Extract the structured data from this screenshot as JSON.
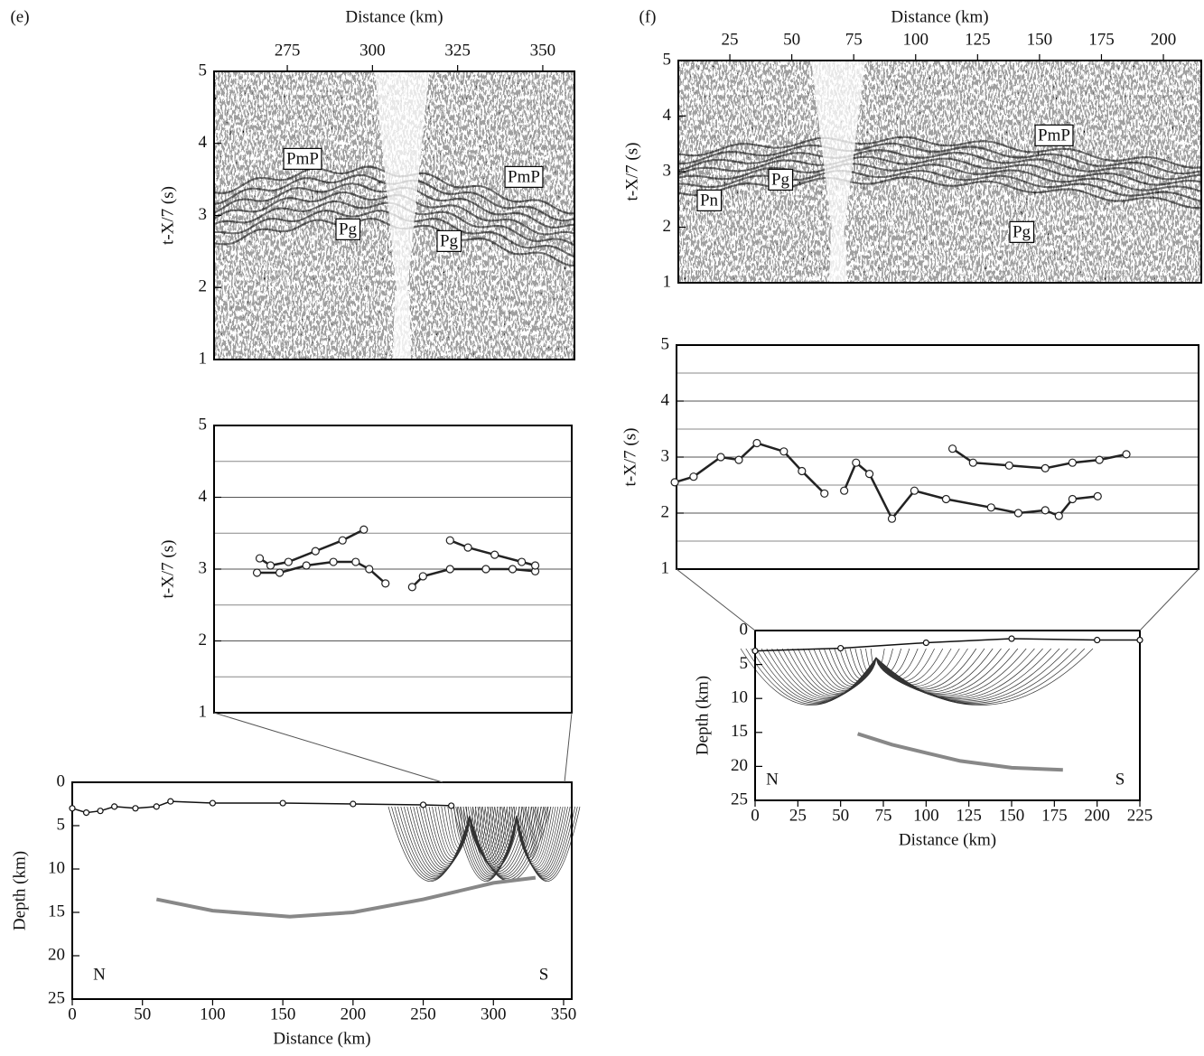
{
  "chart_data": [
    {
      "type": "seismogram",
      "panel": "(e)",
      "xlabel": "Distance (km)",
      "ylabel": "t-X/7 (s)",
      "xlim": [
        253.5,
        359.3
      ],
      "xticks": [
        275,
        300,
        325,
        350
      ],
      "ylim": [
        1,
        5
      ],
      "yticks": [
        1,
        2,
        3,
        4,
        5
      ],
      "annotations": [
        "PmP",
        "PmP",
        "Pg",
        "Pg"
      ]
    },
    {
      "type": "picks",
      "ylabel": "t-X/7 (s)",
      "xlim": [
        253.5,
        359.3
      ],
      "ylim": [
        1,
        5
      ],
      "yticks": [
        1,
        2,
        3,
        4,
        5
      ],
      "yminor": [
        1.5,
        2.5,
        3.5,
        4.5
      ],
      "grid": true,
      "color": "#222",
      "lines": [
        {
          "x": [
            267,
            270.2,
            275.5,
            283.5,
            291.5,
            297.8
          ],
          "values": [
            3.15,
            3.05,
            3.1,
            3.25,
            3.4,
            3.55
          ]
        },
        {
          "x": [
            266.2,
            272.9,
            280.8,
            288.8,
            295.4,
            299.4,
            304.2
          ],
          "values": [
            2.95,
            2.95,
            3.05,
            3.1,
            3.1,
            3.0,
            2.8
          ]
        },
        {
          "x": [
            312.1,
            315.3,
            323.3,
            333.9,
            341.8,
            348.5
          ],
          "values": [
            2.75,
            2.9,
            3.0,
            3.0,
            3.0,
            2.97
          ]
        },
        {
          "x": [
            323.3,
            328.6,
            336.5,
            344.5,
            348.5
          ],
          "values": [
            3.4,
            3.3,
            3.2,
            3.1,
            3.05
          ]
        }
      ]
    },
    {
      "type": "rays",
      "xlabel": "Distance (km)",
      "ylabel": "Depth (km)",
      "xlim": [
        0,
        355.8
      ],
      "xticks": [
        0,
        50,
        100,
        150,
        200,
        250,
        300,
        350
      ],
      "ylim": [
        25,
        0
      ],
      "yticks": [
        0,
        5,
        10,
        15,
        20,
        25
      ],
      "labels": [
        "N",
        "S"
      ],
      "lines": [
        {
          "color": "#888",
          "x": [
            60,
            100,
            155,
            200,
            250,
            300,
            330
          ],
          "values": [
            13.5,
            14.8,
            15.5,
            15.0,
            13.5,
            11.6,
            11.0
          ]
        },
        {
          "color": "#111",
          "x": [
            0,
            10,
            20,
            30,
            45,
            60,
            70,
            100,
            150,
            200,
            250,
            270
          ],
          "values": [
            3.0,
            3.5,
            3.3,
            2.8,
            3.0,
            2.8,
            2.2,
            2.4,
            2.4,
            2.5,
            2.6,
            2.7
          ]
        }
      ]
    },
    {
      "type": "seismogram",
      "panel": "(f)",
      "xlabel": "Distance (km)",
      "ylabel": "t-X/7 (s)",
      "xlim": [
        4.2,
        215.3
      ],
      "xticks": [
        25,
        50,
        75,
        100,
        125,
        150,
        175,
        200
      ],
      "ylim": [
        1,
        5
      ],
      "yticks": [
        1,
        2,
        3,
        4,
        5
      ],
      "annotations": [
        "PmP",
        "Pg",
        "Pn",
        "Pg"
      ]
    },
    {
      "type": "picks",
      "ylabel": "t-X/7 (s)",
      "xlim": [
        4.2,
        215.3
      ],
      "ylim": [
        1,
        5
      ],
      "yticks": [
        1,
        2,
        3,
        4,
        5
      ],
      "yminor": [
        1.5,
        2.5,
        3.5,
        4.5
      ],
      "grid": true,
      "color": "#222",
      "lines": [
        {
          "x": [
            3.5,
            11.1,
            22.1,
            29.4,
            36.7,
            47.6,
            54.9,
            64.0
          ],
          "values": [
            2.55,
            2.65,
            3.0,
            2.95,
            3.25,
            3.1,
            2.75,
            2.35
          ]
        },
        {
          "x": [
            72.0,
            76.8,
            82.2,
            91.3,
            100.4,
            113.2,
            131.4,
            142.4,
            153.3,
            158.8,
            164.3,
            174.5
          ],
          "values": [
            2.4,
            2.9,
            2.7,
            1.9,
            2.4,
            2.25,
            2.1,
            2.0,
            2.05,
            1.95,
            2.25,
            2.3
          ]
        },
        {
          "x": [
            115.8,
            124.1,
            138.7,
            153.3,
            164.3,
            175.2,
            186.1
          ],
          "values": [
            3.15,
            2.9,
            2.85,
            2.8,
            2.9,
            2.95,
            3.05
          ]
        }
      ]
    },
    {
      "type": "rays",
      "xlabel": "Distance (km)",
      "ylabel": "Depth (km)",
      "xlim": [
        0,
        225
      ],
      "xticks": [
        0,
        25,
        50,
        75,
        100,
        125,
        150,
        175,
        200,
        225
      ],
      "ylim": [
        25,
        0
      ],
      "yticks": [
        0,
        5,
        10,
        15,
        20,
        25
      ],
      "labels": [
        "N",
        "S"
      ],
      "lines": [
        {
          "color": "#888",
          "x": [
            60,
            80,
            100,
            120,
            150,
            180
          ],
          "values": [
            15.2,
            16.8,
            18.0,
            19.2,
            20.2,
            20.5
          ]
        },
        {
          "color": "#111",
          "x": [
            0,
            50,
            100,
            150,
            200,
            225
          ],
          "values": [
            3.0,
            2.6,
            1.8,
            1.2,
            1.4,
            1.4
          ]
        }
      ]
    }
  ]
}
